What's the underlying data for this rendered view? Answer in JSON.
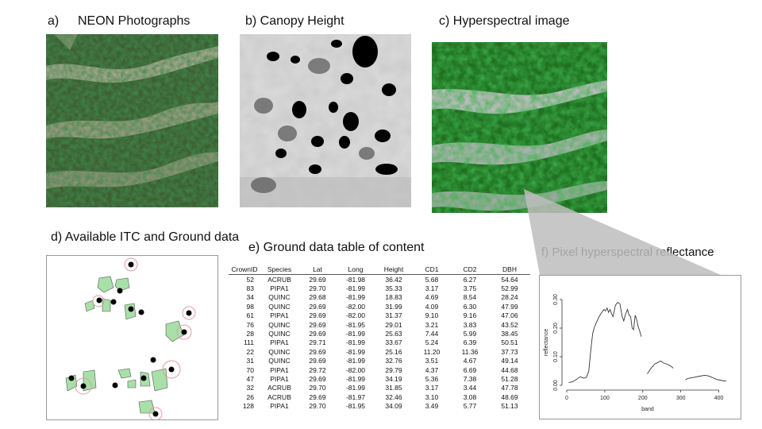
{
  "labels": {
    "a": "a)",
    "a_title": "NEON Photographs",
    "b": "b) Canopy Height",
    "c": "c) Hyperspectral image",
    "d": "d) Available ITC and Ground data",
    "e": "e) Ground data table of content",
    "f": "f) Pixel hyperspectral reflectance"
  },
  "table": {
    "headers": [
      "CrownID",
      "Species",
      "Lat",
      "Long",
      "Height",
      "CD1",
      "CD2",
      "DBH"
    ],
    "rows": [
      [
        "52",
        "ACRUB",
        "29.69",
        "-81.98",
        "36.42",
        "5.68",
        "6.27",
        "54.64"
      ],
      [
        "83",
        "PIPA1",
        "29.70",
        "-81.99",
        "35.33",
        "3.17",
        "3.75",
        "52.99"
      ],
      [
        "34",
        "QUINC",
        "29.68",
        "-81.99",
        "18.83",
        "4.69",
        "8.54",
        "28.24"
      ],
      [
        "98",
        "QUINC",
        "29.69",
        "-82.00",
        "31.99",
        "4.09",
        "6.30",
        "47.99"
      ],
      [
        "61",
        "PIPA1",
        "29.69",
        "-82.00",
        "31.37",
        "9.10",
        "9.16",
        "47.06"
      ],
      [
        "76",
        "QUINC",
        "29.69",
        "-81.95",
        "29.01",
        "3.21",
        "3.83",
        "43.52"
      ],
      [
        "28",
        "QUINC",
        "29.69",
        "-81.99",
        "25.63",
        "7.44",
        "5.99",
        "38.45"
      ],
      [
        "111",
        "PIPA1",
        "29.71",
        "-81.99",
        "33.67",
        "5.24",
        "6.39",
        "50.51"
      ],
      [
        "22",
        "QUINC",
        "29.69",
        "-81.99",
        "25.16",
        "11.20",
        "11.36",
        "37.73"
      ],
      [
        "31",
        "QUINC",
        "29.69",
        "-81.99",
        "32.76",
        "3.51",
        "4.67",
        "49.14"
      ],
      [
        "70",
        "PIPA1",
        "29.72",
        "-82.00",
        "29.79",
        "4.37",
        "6.69",
        "44.68"
      ],
      [
        "47",
        "PIPA1",
        "29.69",
        "-81.99",
        "34.19",
        "5.36",
        "7.38",
        "51.28"
      ],
      [
        "32",
        "ACRUB",
        "29.70",
        "-81.99",
        "31.85",
        "3.17",
        "3.44",
        "47.78"
      ],
      [
        "26",
        "ACRUB",
        "29.69",
        "-81.97",
        "32.46",
        "3.10",
        "3.08",
        "48.69"
      ],
      [
        "128",
        "PIPA1",
        "29.70",
        "-81.95",
        "34.09",
        "3.49",
        "5.77",
        "51.13"
      ]
    ]
  },
  "chart_data": {
    "type": "line",
    "title": "",
    "xlabel": "band",
    "ylabel": "reflectance",
    "xlim": [
      0,
      426
    ],
    "ylim": [
      0,
      0.3
    ],
    "xticks": [
      0,
      100,
      200,
      300,
      400
    ],
    "yticks": [
      0.0,
      0.1,
      0.2,
      0.3
    ],
    "series": [
      {
        "segments": [
          [
            [
              5,
              0.01
            ],
            [
              15,
              0.012
            ],
            [
              25,
              0.02
            ],
            [
              35,
              0.03
            ],
            [
              45,
              0.025
            ],
            [
              52,
              0.028
            ],
            [
              58,
              0.05
            ],
            [
              63,
              0.12
            ],
            [
              68,
              0.18
            ],
            [
              72,
              0.2
            ],
            [
              78,
              0.22
            ],
            [
              85,
              0.24
            ],
            [
              92,
              0.255
            ],
            [
              98,
              0.265
            ],
            [
              102,
              0.26
            ],
            [
              106,
              0.27
            ],
            [
              110,
              0.255
            ],
            [
              114,
              0.265
            ],
            [
              118,
              0.25
            ],
            [
              122,
              0.24
            ],
            [
              128,
              0.28
            ],
            [
              134,
              0.29
            ],
            [
              140,
              0.285
            ],
            [
              146,
              0.24
            ],
            [
              150,
              0.225
            ],
            [
              155,
              0.25
            ],
            [
              160,
              0.265
            ],
            [
              164,
              0.245
            ],
            [
              168,
              0.24
            ],
            [
              172,
              0.2
            ],
            [
              176,
              0.195
            ],
            [
              180,
              0.245
            ],
            [
              184,
              0.23
            ],
            [
              188,
              0.205
            ],
            [
              192,
              0.19
            ],
            [
              196,
              0.17
            ]
          ],
          [
            [
              212,
              0.04
            ],
            [
              222,
              0.06
            ],
            [
              232,
              0.075
            ],
            [
              240,
              0.08
            ],
            [
              248,
              0.085
            ],
            [
              254,
              0.078
            ],
            [
              262,
              0.075
            ],
            [
              270,
              0.07
            ],
            [
              276,
              0.065
            ],
            [
              280,
              0.06
            ]
          ],
          [
            [
              312,
              0.02
            ],
            [
              322,
              0.025
            ],
            [
              335,
              0.028
            ],
            [
              350,
              0.032
            ],
            [
              362,
              0.035
            ],
            [
              372,
              0.033
            ],
            [
              382,
              0.028
            ],
            [
              395,
              0.02
            ],
            [
              405,
              0.018
            ],
            [
              412,
              0.015
            ],
            [
              420,
              0.015
            ]
          ]
        ]
      }
    ]
  }
}
